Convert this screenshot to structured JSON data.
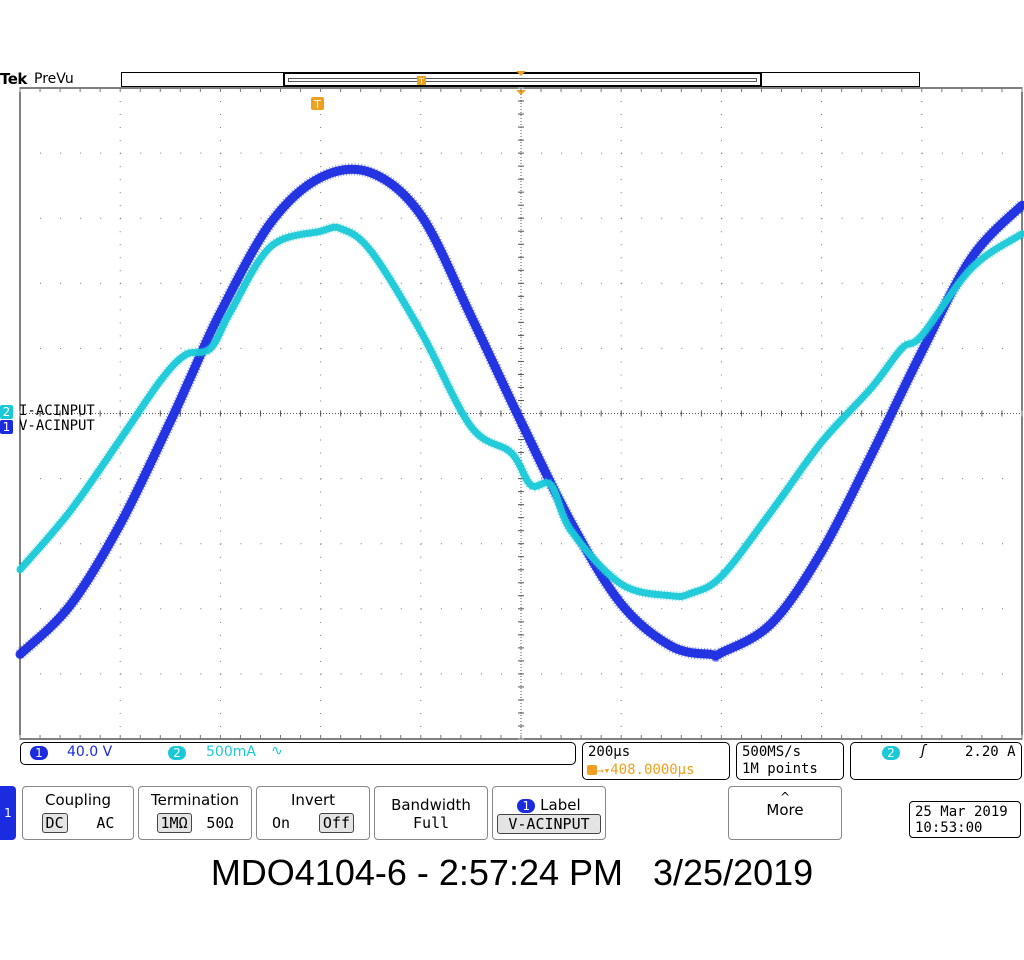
{
  "header": {
    "brand": "Tek",
    "mode": "PreVu"
  },
  "channels": [
    {
      "number": "2",
      "label": "I-ACINPUT",
      "color": "#19c9d8"
    },
    {
      "number": "1",
      "label": "V-ACINPUT",
      "color": "#1a2be0"
    }
  ],
  "status_bar": {
    "ch1_num": "1",
    "ch1_scale": "40.0 V",
    "ch2_num": "2",
    "ch2_scale": "500mA",
    "ch2_bw_symbol": "∿",
    "timebase": "200µs",
    "trigger_position": "408.0000µs",
    "sample_rate": "500MS/s",
    "record_length": "1M points",
    "trig_source": "2",
    "trig_slope_symbol": "ʃ",
    "trig_level": "2.20 A"
  },
  "menu": {
    "side_channel": "1",
    "coupling": {
      "title": "Coupling",
      "options": [
        "DC",
        "AC"
      ],
      "selected": "DC"
    },
    "termination": {
      "title": "Termination",
      "options": [
        "1MΩ",
        "50Ω"
      ],
      "selected": "1MΩ"
    },
    "invert": {
      "title": "Invert",
      "options": [
        "On",
        "Off"
      ],
      "selected": "Off"
    },
    "bandwidth": {
      "title": "Bandwidth",
      "value": "Full"
    },
    "label": {
      "channel": "1",
      "title": "Label",
      "value": "V-ACINPUT"
    },
    "more": {
      "arrow": "^",
      "title": "More"
    }
  },
  "clock": {
    "date": "25 Mar 2019",
    "time": "10:53:00"
  },
  "caption": "MDO4104-6 - 2:57:24 PM   3/25/2019",
  "chart_data": {
    "type": "line",
    "title": "",
    "xlabel": "",
    "ylabel": "",
    "x_unit": "µs",
    "xlim": [
      0,
      2000
    ],
    "grid": true,
    "series": [
      {
        "name": "V-ACINPUT",
        "color": "#1a2be0",
        "unit": "V",
        "x": [
          0,
          100,
          200,
          300,
          340,
          400,
          500,
          600,
          700,
          800,
          900,
          1000,
          1100,
          1200,
          1300,
          1380,
          1400,
          1500,
          1600,
          1700,
          1800,
          1900,
          2000
        ],
        "y": [
          -148,
          -118,
          -68,
          -5,
          22,
          62,
          117,
          145,
          148,
          122,
          60,
          -5,
          -67,
          -117,
          -143,
          -148,
          -147,
          -129,
          -85,
          -25,
          38,
          96,
          128
        ]
      },
      {
        "name": "I-ACINPUT",
        "color": "#19c9d8",
        "unit": "A",
        "x": [
          0,
          100,
          200,
          280,
          330,
          380,
          420,
          500,
          600,
          640,
          700,
          800,
          900,
          980,
          1020,
          1060,
          1100,
          1200,
          1300,
          1340,
          1400,
          1500,
          1600,
          1700,
          1760,
          1800,
          1900,
          2000
        ],
        "y": [
          -1.2,
          -0.75,
          -0.2,
          0.25,
          0.45,
          0.5,
          0.78,
          1.28,
          1.4,
          1.42,
          1.25,
          0.63,
          -0.1,
          -0.3,
          -0.55,
          -0.55,
          -0.9,
          -1.31,
          -1.4,
          -1.38,
          -1.25,
          -0.75,
          -0.22,
          0.2,
          0.5,
          0.6,
          1.12,
          1.38
        ]
      }
    ]
  }
}
